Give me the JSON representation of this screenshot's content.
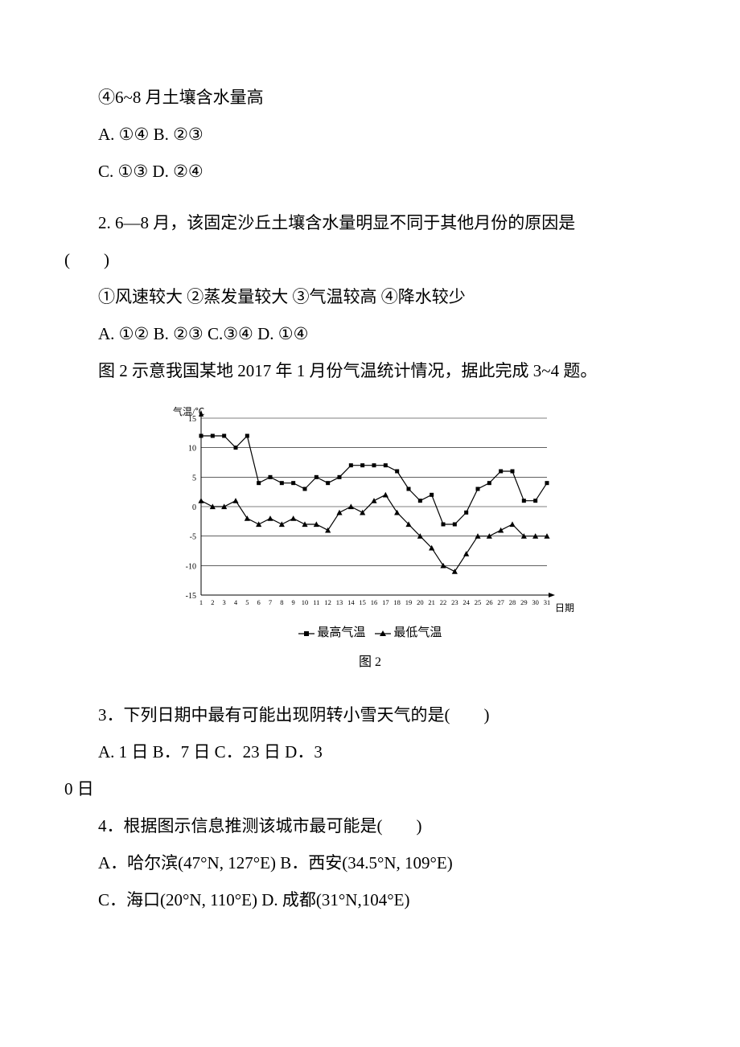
{
  "lines": {
    "l1": "④6~8 月土壤含水量高",
    "l2": "A. ①④ B. ②③",
    "l3": "C. ①③ D. ②④",
    "q2a": "2. 6—8 月，该固定沙丘土壤含水量明显不同于其他月份的原因是",
    "q2b": "(　　)",
    "q2c": "①风速较大 ②蒸发量较大 ③气温较高 ④降水较少",
    "q2d": "A. ①② B. ②③ C.③④ D. ①④",
    "intro34": "图 2 示意我国某地 2017 年 1 月份气温统计情况，据此完成 3~4 题。",
    "q3": "3．下列日期中最有可能出现阴转小雪天气的是(　　)",
    "q3opts1": "A. 1 日 B．7 日 C．23 日 D．3",
    "q3opts2": "0 日",
    "q4": "4．根据图示信息推测该城市最可能是(　　)",
    "q4a": "A．哈尔滨(47°N, 127°E) B．西安(34.5°N, 109°E)",
    "q4b": "C．海口(20°N, 110°E) D. 成都(31°N,104°E)"
  },
  "chart": {
    "type": "line",
    "ylabel": "气温/℃",
    "xlabel": "日期",
    "legend_high": "最高气温",
    "legend_low": "最低气温",
    "caption": "图 2",
    "ylim": [
      -15,
      15
    ],
    "ytick_step": 5,
    "yticks": [
      -15,
      -10,
      -5,
      0,
      5,
      10,
      15
    ],
    "xticks": [
      1,
      2,
      3,
      4,
      5,
      6,
      7,
      8,
      9,
      10,
      11,
      12,
      13,
      14,
      15,
      16,
      17,
      18,
      19,
      20,
      21,
      22,
      23,
      24,
      25,
      26,
      27,
      28,
      29,
      30,
      31
    ],
    "high_color": "#000000",
    "low_color": "#000000",
    "grid_color": "#000000",
    "background_color": "#ffffff",
    "axis_color": "#000000",
    "label_fontsize": 12,
    "tick_fontsize": 10,
    "high_marker": "square",
    "low_marker": "triangle",
    "marker_size": 5,
    "line_width": 1.2,
    "high": [
      12,
      12,
      12,
      10,
      12,
      4,
      5,
      4,
      4,
      3,
      5,
      4,
      5,
      7,
      7,
      7,
      7,
      6,
      3,
      1,
      2,
      -3,
      -3,
      -1,
      3,
      4,
      6,
      6,
      1,
      1,
      4
    ],
    "low": [
      1,
      0,
      0,
      1,
      -2,
      -3,
      -2,
      -3,
      -2,
      -3,
      -3,
      -4,
      -1,
      0,
      -1,
      1,
      2,
      -1,
      -3,
      -5,
      -7,
      -10,
      -11,
      -8,
      -5,
      -5,
      -4,
      -3,
      -5,
      -5,
      -5
    ]
  }
}
